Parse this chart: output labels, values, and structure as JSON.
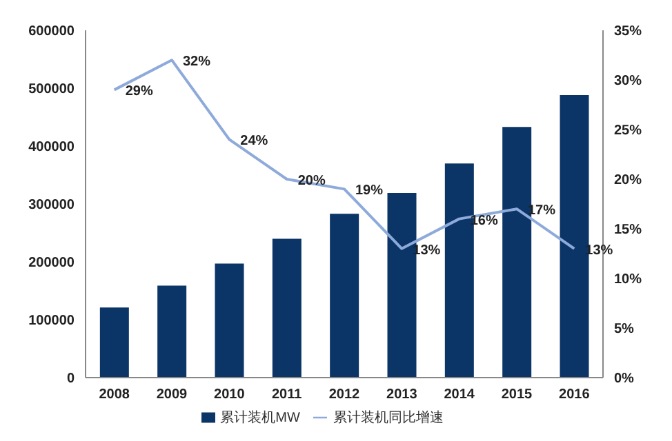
{
  "chart_data": {
    "type": "bar",
    "categories": [
      "2008",
      "2009",
      "2010",
      "2011",
      "2012",
      "2013",
      "2014",
      "2015",
      "2016"
    ],
    "series": [
      {
        "name": "累计装机MW",
        "color": "#0b3467",
        "values": [
          121000,
          159000,
          197000,
          240000,
          283000,
          319000,
          370000,
          433000,
          488000
        ]
      },
      {
        "name": "累计装机同比增速",
        "type": "line",
        "axis": "y2",
        "color": "#8eaadb",
        "values": [
          29,
          32,
          24,
          20,
          19,
          13,
          16,
          17,
          13
        ],
        "value_labels": [
          "29%",
          "32%",
          "24%",
          "20%",
          "19%",
          "13%",
          "16%",
          "17%",
          "13%"
        ]
      }
    ],
    "ylim": [
      0,
      600000
    ],
    "yticks": [
      0,
      100000,
      200000,
      300000,
      400000,
      500000,
      600000
    ],
    "y2lim": [
      0,
      35
    ],
    "y2ticks": [
      {
        "value": 0,
        "label": "0%"
      },
      {
        "value": 5,
        "label": "5%"
      },
      {
        "value": 10,
        "label": "10%"
      },
      {
        "value": 15,
        "label": "15%"
      },
      {
        "value": 20,
        "label": "20%"
      },
      {
        "value": 25,
        "label": "25%"
      },
      {
        "value": 30,
        "label": "30%"
      },
      {
        "value": 35,
        "label": "35%"
      }
    ],
    "grid": false,
    "legend": "bottom",
    "marker": "none",
    "line_style": "solid"
  }
}
